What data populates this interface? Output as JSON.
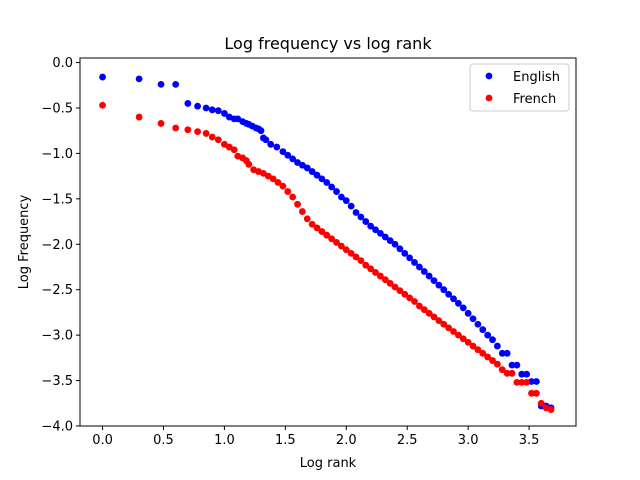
{
  "chart_data": {
    "type": "scatter",
    "title": "Log frequency vs log rank",
    "xlabel": "Log rank",
    "ylabel": "Log Frequency",
    "xlim": [
      -0.185,
      3.885
    ],
    "ylim": [
      -4.0,
      0.05
    ],
    "xticks": [
      0.0,
      0.5,
      1.0,
      1.5,
      2.0,
      2.5,
      3.0,
      3.5
    ],
    "xtick_labels": [
      "0.0",
      "0.5",
      "1.0",
      "1.5",
      "2.0",
      "2.5",
      "3.0",
      "3.5"
    ],
    "yticks": [
      0.0,
      -0.5,
      -1.0,
      -1.5,
      -2.0,
      -2.5,
      -3.0,
      -3.5,
      -4.0
    ],
    "ytick_labels": [
      "0.0",
      "−0.5",
      "−1.0",
      "−1.5",
      "−2.0",
      "−2.5",
      "−3.0",
      "−3.5",
      "−4.0"
    ],
    "grid": false,
    "legend_position": "top-right",
    "series": [
      {
        "name": "English",
        "color": "#0000ff",
        "x": [
          0.0,
          0.3,
          0.48,
          0.6,
          0.7,
          0.78,
          0.85,
          0.9,
          0.95,
          1.0,
          1.04,
          1.08,
          1.11,
          1.15,
          1.18,
          1.2,
          1.23,
          1.26,
          1.28,
          1.3,
          1.32,
          1.34,
          1.38,
          1.43,
          1.48,
          1.52,
          1.56,
          1.6,
          1.64,
          1.68,
          1.72,
          1.76,
          1.8,
          1.84,
          1.88,
          1.92,
          1.96,
          2.0,
          2.04,
          2.08,
          2.12,
          2.16,
          2.2,
          2.24,
          2.28,
          2.32,
          2.36,
          2.4,
          2.44,
          2.48,
          2.52,
          2.56,
          2.6,
          2.64,
          2.68,
          2.72,
          2.76,
          2.8,
          2.84,
          2.88,
          2.92,
          2.96,
          3.0,
          3.04,
          3.08,
          3.12,
          3.16,
          3.2,
          3.24,
          3.28,
          3.32,
          3.36,
          3.4,
          3.44,
          3.48,
          3.52,
          3.56,
          3.6,
          3.64,
          3.68
        ],
        "y": [
          -0.16,
          -0.18,
          -0.24,
          -0.24,
          -0.45,
          -0.48,
          -0.5,
          -0.52,
          -0.53,
          -0.56,
          -0.6,
          -0.62,
          -0.62,
          -0.65,
          -0.67,
          -0.68,
          -0.7,
          -0.72,
          -0.73,
          -0.75,
          -0.83,
          -0.85,
          -0.9,
          -0.93,
          -0.98,
          -1.02,
          -1.06,
          -1.1,
          -1.13,
          -1.16,
          -1.2,
          -1.24,
          -1.28,
          -1.32,
          -1.37,
          -1.42,
          -1.48,
          -1.52,
          -1.58,
          -1.65,
          -1.7,
          -1.75,
          -1.8,
          -1.84,
          -1.88,
          -1.92,
          -1.96,
          -2.0,
          -2.05,
          -2.1,
          -2.15,
          -2.2,
          -2.25,
          -2.3,
          -2.35,
          -2.4,
          -2.45,
          -2.5,
          -2.55,
          -2.6,
          -2.65,
          -2.7,
          -2.76,
          -2.82,
          -2.88,
          -2.94,
          -3.0,
          -3.05,
          -3.12,
          -3.2,
          -3.2,
          -3.33,
          -3.33,
          -3.43,
          -3.43,
          -3.51,
          -3.51,
          -3.78,
          -3.78,
          -3.8
        ]
      },
      {
        "name": "French",
        "color": "#ff0000",
        "x": [
          0.0,
          0.3,
          0.48,
          0.6,
          0.7,
          0.78,
          0.85,
          0.9,
          0.95,
          1.0,
          1.04,
          1.08,
          1.11,
          1.15,
          1.18,
          1.2,
          1.24,
          1.28,
          1.32,
          1.36,
          1.4,
          1.44,
          1.48,
          1.52,
          1.56,
          1.6,
          1.64,
          1.68,
          1.72,
          1.76,
          1.8,
          1.84,
          1.88,
          1.92,
          1.96,
          2.0,
          2.04,
          2.08,
          2.12,
          2.16,
          2.2,
          2.24,
          2.28,
          2.32,
          2.36,
          2.4,
          2.44,
          2.48,
          2.52,
          2.56,
          2.6,
          2.64,
          2.68,
          2.72,
          2.76,
          2.8,
          2.84,
          2.88,
          2.92,
          2.96,
          3.0,
          3.04,
          3.08,
          3.12,
          3.16,
          3.2,
          3.24,
          3.28,
          3.32,
          3.36,
          3.4,
          3.44,
          3.48,
          3.52,
          3.56,
          3.6,
          3.64,
          3.68
        ],
        "y": [
          -0.47,
          -0.6,
          -0.67,
          -0.72,
          -0.74,
          -0.76,
          -0.78,
          -0.82,
          -0.85,
          -0.9,
          -0.93,
          -0.96,
          -1.03,
          -1.05,
          -1.08,
          -1.12,
          -1.18,
          -1.2,
          -1.22,
          -1.25,
          -1.28,
          -1.32,
          -1.36,
          -1.42,
          -1.48,
          -1.56,
          -1.64,
          -1.72,
          -1.78,
          -1.82,
          -1.86,
          -1.9,
          -1.94,
          -1.98,
          -2.02,
          -2.06,
          -2.1,
          -2.14,
          -2.18,
          -2.23,
          -2.27,
          -2.31,
          -2.35,
          -2.39,
          -2.43,
          -2.47,
          -2.51,
          -2.55,
          -2.59,
          -2.63,
          -2.68,
          -2.72,
          -2.76,
          -2.8,
          -2.84,
          -2.88,
          -2.92,
          -2.96,
          -3.0,
          -3.04,
          -3.08,
          -3.12,
          -3.16,
          -3.2,
          -3.24,
          -3.28,
          -3.32,
          -3.38,
          -3.42,
          -3.42,
          -3.52,
          -3.52,
          -3.52,
          -3.64,
          -3.64,
          -3.75,
          -3.8,
          -3.82
        ]
      }
    ]
  }
}
